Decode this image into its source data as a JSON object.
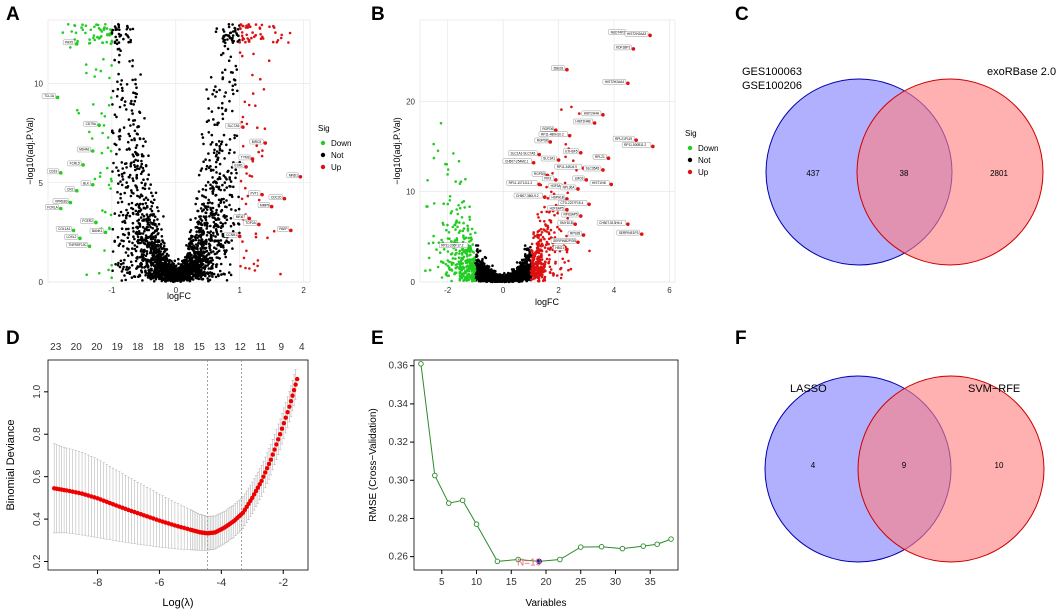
{
  "panels": {
    "A": {
      "letter": "A"
    },
    "B": {
      "letter": "B"
    },
    "C": {
      "letter": "C"
    },
    "D": {
      "letter": "D"
    },
    "E": {
      "letter": "E"
    },
    "F": {
      "letter": "F"
    }
  },
  "colors": {
    "down": "#22cc22",
    "not": "#000000",
    "up": "#dd1111",
    "venn_left": "#8080ff",
    "venn_right": "#ff8080",
    "lasso_curve": "#ee0000",
    "rfe_line": "#2a8a2a"
  },
  "chart_data": [
    {
      "id": "A",
      "type": "scatter",
      "xlabel": "logFC",
      "ylabel": "−log10(adj.P.Val)",
      "xlim": [
        -2.0,
        2.1
      ],
      "ylim": [
        0,
        13.2
      ],
      "xticks": [
        "-1",
        "0",
        "1",
        "2"
      ],
      "yticks": [
        "0",
        "5",
        "10"
      ],
      "legend": {
        "title": "Sig",
        "items": [
          "Down",
          "Not",
          "Up"
        ]
      },
      "labeled_points": {
        "down": [
          {
            "x": -1.55,
            "y": 12.0,
            "label": "PAX5"
          },
          {
            "x": -1.85,
            "y": 9.3,
            "label": "TCL1A"
          },
          {
            "x": -1.2,
            "y": 7.9,
            "label": "CD79A"
          },
          {
            "x": -1.3,
            "y": 6.6,
            "label": "MS4A1"
          },
          {
            "x": -1.45,
            "y": 5.9,
            "label": "FCRL5"
          },
          {
            "x": -1.8,
            "y": 5.5,
            "label": "CD19"
          },
          {
            "x": -1.55,
            "y": 4.6,
            "label": "CR2"
          },
          {
            "x": -1.65,
            "y": 4.0,
            "label": "VPREB3"
          },
          {
            "x": -1.8,
            "y": 3.7,
            "label": "FCRLA"
          },
          {
            "x": -1.3,
            "y": 4.9,
            "label": "BLK"
          },
          {
            "x": -1.6,
            "y": 2.6,
            "label": "COL1A1"
          },
          {
            "x": -1.5,
            "y": 2.2,
            "label": "LOXL2"
          },
          {
            "x": -1.25,
            "y": 3.0,
            "label": "FCER2"
          },
          {
            "x": -1.1,
            "y": 2.5,
            "label": "BANK1"
          },
          {
            "x": -1.35,
            "y": 1.8,
            "label": "TNFRSF13C"
          }
        ],
        "up": [
          {
            "x": 1.95,
            "y": 5.3,
            "label": "MND1"
          },
          {
            "x": 1.1,
            "y": 5.8,
            "label": "ESR1"
          },
          {
            "x": 1.35,
            "y": 4.4,
            "label": "PVT1"
          },
          {
            "x": 1.15,
            "y": 3.2,
            "label": "MKI67"
          },
          {
            "x": 1.3,
            "y": 2.9,
            "label": "TOP2A"
          },
          {
            "x": 1.5,
            "y": 3.8,
            "label": "MMP9"
          },
          {
            "x": 1.0,
            "y": 2.3,
            "label": "CCNB1"
          },
          {
            "x": 1.7,
            "y": 4.2,
            "label": "CDC20"
          },
          {
            "x": 1.4,
            "y": 7.0,
            "label": "BIRC5"
          },
          {
            "x": 1.2,
            "y": 6.2,
            "label": "TYMS"
          },
          {
            "x": 1.05,
            "y": 7.8,
            "label": "SLC7A5"
          },
          {
            "x": 1.8,
            "y": 2.6,
            "label": "PAEP"
          }
        ]
      }
    },
    {
      "id": "B",
      "type": "scatter",
      "xlabel": "logFC",
      "ylabel": "−log10(adj.P.Val)",
      "xlim": [
        -3.0,
        6.2
      ],
      "ylim": [
        0,
        29
      ],
      "xticks": [
        "-2",
        "0",
        "2",
        "4",
        "6"
      ],
      "yticks": [
        "0",
        "10",
        "20"
      ],
      "legend": {
        "title": "Sig",
        "items": [
          "Down",
          "Not",
          "Up"
        ]
      },
      "labeled_points": {
        "down": [
          {
            "x": -1.2,
            "y": 3.9,
            "label": "RP11-206F17.2"
          }
        ],
        "up": [
          {
            "x": 4.5,
            "y": 27.5,
            "label": "NUDT4P2"
          },
          {
            "x": 5.3,
            "y": 27.3,
            "label": "HIST2H2AA3"
          },
          {
            "x": 4.7,
            "y": 25.8,
            "label": "KDF1BP1"
          },
          {
            "x": 2.3,
            "y": 23.5,
            "label": "ZBED1"
          },
          {
            "x": 4.5,
            "y": 22.0,
            "label": "HIST2H2AA4"
          },
          {
            "x": 3.6,
            "y": 18.5,
            "label": "HIST2H4A"
          },
          {
            "x": 3.3,
            "y": 17.6,
            "label": "HIST2H4B"
          },
          {
            "x": 1.9,
            "y": 16.8,
            "label": "RGPD6"
          },
          {
            "x": 2.4,
            "y": 16.2,
            "label": "RP11-480H10.2"
          },
          {
            "x": 1.7,
            "y": 15.5,
            "label": "RGPD8"
          },
          {
            "x": 4.8,
            "y": 15.7,
            "label": "RPL21P119"
          },
          {
            "x": 5.4,
            "y": 15.0,
            "label": "RP11-500B11.2"
          },
          {
            "x": 2.8,
            "y": 14.3,
            "label": "ETHSF5"
          },
          {
            "x": 1.3,
            "y": 14.1,
            "label": "SLC1A1-SLC7A5"
          },
          {
            "x": 1.1,
            "y": 13.2,
            "label": "CH507-254M2.1"
          },
          {
            "x": 2.0,
            "y": 13.5,
            "label": "SLC1A1"
          },
          {
            "x": 3.8,
            "y": 13.7,
            "label": "RPL21"
          },
          {
            "x": 2.9,
            "y": 12.6,
            "label": "RP11-345J4.9"
          },
          {
            "x": 3.6,
            "y": 12.4,
            "label": "SLC35A5"
          },
          {
            "x": 1.6,
            "y": 11.8,
            "label": "RGPD5"
          },
          {
            "x": 1.9,
            "y": 11.3,
            "label": "PIK3"
          },
          {
            "x": 3.0,
            "y": 11.3,
            "label": "LMO3"
          },
          {
            "x": 1.3,
            "y": 10.8,
            "label": "RP11-1071J11.3"
          },
          {
            "x": 2.2,
            "y": 10.5,
            "label": "H3F3A"
          },
          {
            "x": 2.7,
            "y": 10.3,
            "label": "NPL36A"
          },
          {
            "x": 3.9,
            "y": 10.8,
            "label": "HIST1H4I"
          },
          {
            "x": 1.5,
            "y": 9.4,
            "label": "CH507-380L9.2"
          },
          {
            "x": 2.3,
            "y": 9.2,
            "label": "HSPA1B"
          },
          {
            "x": 3.1,
            "y": 8.6,
            "label": "CTD-2227F15.4"
          },
          {
            "x": 2.3,
            "y": 8.0,
            "label": "H2FSAP5"
          },
          {
            "x": 2.8,
            "y": 7.3,
            "label": "RPS3AP5"
          },
          {
            "x": 2.6,
            "y": 6.4,
            "label": "SMYD1B"
          },
          {
            "x": 4.5,
            "y": 6.4,
            "label": "CH507-513H4.4"
          },
          {
            "x": 2.9,
            "y": 5.2,
            "label": "RPS28"
          },
          {
            "x": 2.7,
            "y": 4.4,
            "label": "SERPINB2PGB"
          },
          {
            "x": 5.0,
            "y": 5.3,
            "label": "SERPINE1P3"
          },
          {
            "x": 2.3,
            "y": 3.6,
            "label": "HBG1"
          }
        ]
      }
    },
    {
      "id": "C",
      "type": "venn",
      "sets": [
        "GES100063\nGSE100206",
        "exoRBase 2.0"
      ],
      "left_label_lines": [
        "GES100063",
        "GSE100206"
      ],
      "right_label": "exoRBase 2.0",
      "counts": {
        "left_only": "437",
        "both": "38",
        "right_only": "2801"
      }
    },
    {
      "id": "D",
      "type": "line",
      "xlabel": "Log(λ)",
      "ylabel": "Binomial Deviance",
      "xlim": [
        -9.6,
        -1.2
      ],
      "ylim": [
        0.16,
        1.15
      ],
      "xticks": [
        "-8",
        "-6",
        "-4",
        "-2"
      ],
      "yticks": [
        "0.2",
        "0.4",
        "0.6",
        "0.8",
        "1.0"
      ],
      "top_ticks": [
        "23",
        "20",
        "20",
        "19",
        "18",
        "18",
        "18",
        "15",
        "13",
        "12",
        "11",
        "9",
        "4"
      ],
      "lambda_min": -4.45,
      "lambda_1se": -3.35,
      "series": [
        {
          "name": "deviance",
          "points": [
            [
              -9.4,
              0.545
            ],
            [
              -9.0,
              0.535
            ],
            [
              -8.5,
              0.52
            ],
            [
              -8.0,
              0.498
            ],
            [
              -7.5,
              0.47
            ],
            [
              -7.0,
              0.443
            ],
            [
              -6.5,
              0.418
            ],
            [
              -6.0,
              0.393
            ],
            [
              -5.5,
              0.37
            ],
            [
              -5.0,
              0.35
            ],
            [
              -4.7,
              0.338
            ],
            [
              -4.45,
              0.333
            ],
            [
              -4.2,
              0.337
            ],
            [
              -3.9,
              0.36
            ],
            [
              -3.6,
              0.39
            ],
            [
              -3.3,
              0.43
            ],
            [
              -3.0,
              0.5
            ],
            [
              -2.7,
              0.58
            ],
            [
              -2.4,
              0.68
            ],
            [
              -2.1,
              0.8
            ],
            [
              -1.8,
              0.93
            ],
            [
              -1.55,
              1.06
            ]
          ]
        },
        {
          "name": "error_halfwidth",
          "values": [
            0.21,
            0.2,
            0.195,
            0.185,
            0.17,
            0.155,
            0.14,
            0.125,
            0.11,
            0.095,
            0.085,
            0.08,
            0.078,
            0.077,
            0.076,
            0.075,
            0.074,
            0.073,
            0.072,
            0.072,
            0.072,
            0.072
          ]
        }
      ]
    },
    {
      "id": "E",
      "type": "line",
      "xlabel": "Variables",
      "ylabel": "RMSE (Cross−Validation)",
      "xlim": [
        1,
        39
      ],
      "ylim": [
        0.253,
        0.363
      ],
      "xticks": [
        "5",
        "10",
        "15",
        "20",
        "25",
        "30",
        "35"
      ],
      "yticks": [
        "0.26",
        "0.28",
        "0.30",
        "0.32",
        "0.34",
        "0.36"
      ],
      "annotation": "N=19",
      "best": {
        "x": 19,
        "y": 0.2575
      },
      "series": [
        {
          "name": "rmse",
          "x": [
            2,
            4,
            6,
            8,
            10,
            13,
            16,
            19,
            22,
            25,
            28,
            31,
            34,
            36,
            38
          ],
          "y": [
            0.361,
            0.3025,
            0.288,
            0.2895,
            0.277,
            0.2575,
            0.2585,
            0.2575,
            0.2585,
            0.265,
            0.2652,
            0.2642,
            0.2655,
            0.2665,
            0.2692
          ]
        }
      ]
    },
    {
      "id": "F",
      "type": "venn",
      "sets": [
        "LASSO",
        "SVM−RFE"
      ],
      "left_label": "LASSO",
      "right_label": "SVM−RFE",
      "counts": {
        "left_only": "4",
        "both": "9",
        "right_only": "10"
      }
    }
  ]
}
